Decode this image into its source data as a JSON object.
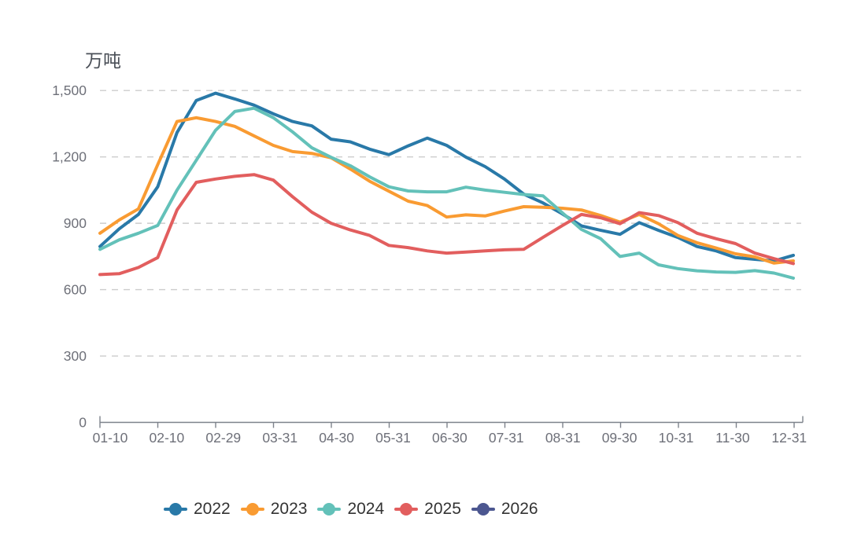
{
  "chart_data": {
    "type": "line",
    "unit_label": "万吨",
    "title": "",
    "xlabel": "",
    "ylabel": "万吨",
    "categories": [
      "01-10",
      "02-10",
      "02-29",
      "03-31",
      "04-30",
      "05-31",
      "06-30",
      "07-31",
      "08-31",
      "09-30",
      "10-31",
      "11-30",
      "12-31"
    ],
    "points_per_tick_interval": 3,
    "y_tick_labels": [
      "0",
      "300",
      "600",
      "900",
      "1,200",
      "1,500"
    ],
    "y_tick_values": [
      0,
      300,
      600,
      900,
      1200,
      1500
    ],
    "ylim": [
      0,
      1500
    ],
    "grid": "horizontal-dashed",
    "grid_color": "#cccccc",
    "axis_color": "#7d828b",
    "label_color": "#6E7079",
    "legend_position": "bottom",
    "series": [
      {
        "name": "2022",
        "color": "#2979a8",
        "values": [
          795,
          875,
          940,
          1065,
          1310,
          1455,
          1488,
          1462,
          1434,
          1395,
          1360,
          1340,
          1280,
          1268,
          1235,
          1210,
          1250,
          1285,
          1252,
          1199,
          1156,
          1100,
          1032,
          992,
          943,
          888,
          868,
          850,
          903,
          868,
          836,
          795,
          775,
          745,
          737,
          730,
          755
        ]
      },
      {
        "name": "2023",
        "color": "#f99b32",
        "values": [
          855,
          915,
          965,
          1165,
          1360,
          1377,
          1360,
          1338,
          1295,
          1252,
          1224,
          1216,
          1196,
          1145,
          1090,
          1045,
          1000,
          980,
          928,
          938,
          933,
          955,
          975,
          972,
          968,
          960,
          935,
          905,
          940,
          898,
          845,
          812,
          788,
          762,
          748,
          720,
          730
        ]
      },
      {
        "name": "2024",
        "color": "#63c1b9",
        "values": [
          782,
          825,
          855,
          890,
          1050,
          1185,
          1320,
          1405,
          1420,
          1377,
          1313,
          1241,
          1198,
          1160,
          1110,
          1065,
          1046,
          1042,
          1042,
          1063,
          1050,
          1040,
          1030,
          1024,
          948,
          872,
          830,
          750,
          765,
          712,
          695,
          685,
          680,
          678,
          686,
          675,
          652
        ]
      },
      {
        "name": "2025",
        "color": "#e25e5e",
        "values": [
          668,
          672,
          700,
          745,
          960,
          1085,
          1100,
          1112,
          1120,
          1095,
          1020,
          950,
          900,
          870,
          845,
          800,
          790,
          775,
          765,
          770,
          775,
          780,
          782,
          836,
          889,
          940,
          925,
          898,
          948,
          935,
          903,
          855,
          830,
          808,
          765,
          740,
          718
        ]
      },
      {
        "name": "2026",
        "color": "#4c5790",
        "values": []
      }
    ]
  }
}
